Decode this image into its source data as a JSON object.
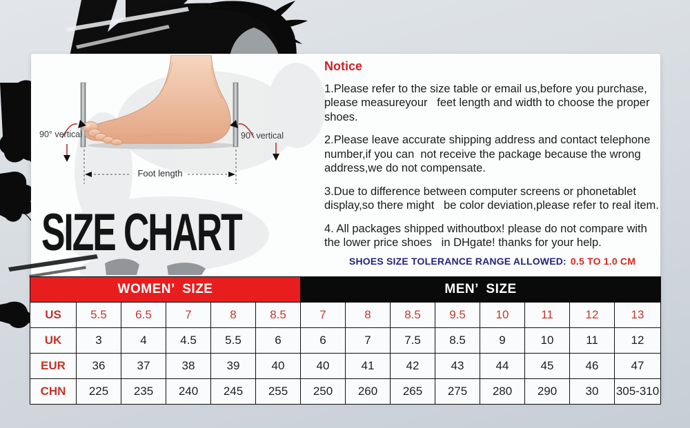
{
  "chart_data": {
    "type": "table",
    "title": "SIZE CHART",
    "header_groups": [
      {
        "label": "WOMEN’  SIZE",
        "columns": 6,
        "bg": "#e81d1d",
        "fg": "#ffffff"
      },
      {
        "label": "MEN’  SIZE",
        "columns": 8,
        "bg": "#0a0a0a",
        "fg": "#ffffff"
      }
    ],
    "women_column_count": 5,
    "men_column_count": 8,
    "rows": [
      {
        "label": "US",
        "values": [
          "5.5",
          "6.5",
          "7",
          "8",
          "8.5",
          "7",
          "8",
          "8.5",
          "9.5",
          "10",
          "11",
          "12",
          "13"
        ],
        "value_color": "#c8372b"
      },
      {
        "label": "UK",
        "values": [
          "3",
          "4",
          "4.5",
          "5.5",
          "6",
          "6",
          "7",
          "7.5",
          "8.5",
          "9",
          "10",
          "11",
          "12"
        ],
        "value_color": "#1d1d1d"
      },
      {
        "label": "EUR",
        "values": [
          "36",
          "37",
          "38",
          "39",
          "40",
          "40",
          "41",
          "42",
          "43",
          "44",
          "45",
          "46",
          "47"
        ],
        "value_color": "#1d1d1d"
      },
      {
        "label": "CHN",
        "values": [
          "225",
          "235",
          "240",
          "245",
          "255",
          "250",
          "260",
          "265",
          "275",
          "280",
          "290",
          "30",
          "305-310"
        ],
        "value_color": "#1d1d1d"
      }
    ]
  },
  "title": "SIZE CHART",
  "diagram": {
    "left_angle_label": "90° vertical",
    "right_angle_label": "90° vertical",
    "foot_length_label": "Foot length"
  },
  "notice": {
    "title": "Notice",
    "items": [
      "1.Please refer to the size table or email us,before you purchase, please measureyour   feet length and width to choose the proper shoes.",
      "2.Please leave accurate shipping address and contact telephone number,if you can  not receive the package because the wrong address,we do not compensate.",
      "3.Due to difference between computer screens or phonetablet display,so there might   be color deviation,please refer to real item.",
      "4. All packages shipped withoutbox! please do not compare with the lower price shoes   in DHgate! thanks for your help."
    ]
  },
  "tolerance": {
    "label": "SHOES SIZE TOLERANCE RANGE ALLOWED:",
    "value": "0.5 TO 1.0 CM"
  },
  "colors": {
    "women_header_bg": "#e81d1d",
    "men_header_bg": "#0a0a0a",
    "row_label_red": "#c33428",
    "us_value_red": "#c8372b",
    "notice_title_red": "#c9232a",
    "tolerance_navy": "#24247c",
    "tolerance_red": "#cf2a1d",
    "panel_bg": "#fcfdfd",
    "page_bg": "#d5dae0"
  }
}
